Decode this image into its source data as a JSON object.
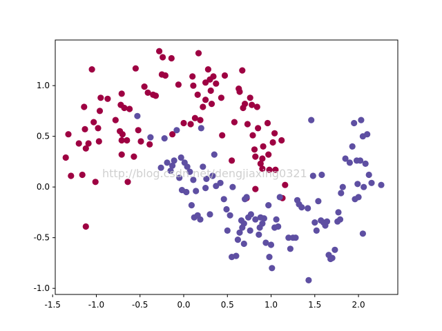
{
  "watermark": "http://blog.csdn.net/dengjiaxing0321",
  "chart_data": {
    "type": "scatter",
    "title": "",
    "xlabel": "",
    "ylabel": "",
    "xlim": [
      -1.47,
      2.45
    ],
    "ylim": [
      -1.06,
      1.45
    ],
    "xticks": [
      "-1.5",
      "-1.0",
      "-0.5",
      "0.0",
      "0.5",
      "1.0",
      "1.5",
      "2.0"
    ],
    "yticks": [
      "-1.0",
      "-0.5",
      "0.0",
      "0.5",
      "1.0"
    ],
    "xtick_values": [
      -1.5,
      -1.0,
      -0.5,
      0.0,
      0.5,
      1.0,
      1.5,
      2.0
    ],
    "ytick_values": [
      -1.0,
      -0.5,
      0.0,
      0.5,
      1.0
    ],
    "grid": false,
    "legend": "none",
    "series": [
      {
        "color": "#9e0142",
        "points": [
          [
            -1.35,
            0.29
          ],
          [
            -1.32,
            0.52
          ],
          [
            -1.29,
            0.11
          ],
          [
            -1.2,
            0.43
          ],
          [
            -1.16,
            0.12
          ],
          [
            -1.14,
            0.79
          ],
          [
            -1.13,
            0.57
          ],
          [
            -1.12,
            0.38
          ],
          [
            -1.12,
            -0.39
          ],
          [
            -1.09,
            0.43
          ],
          [
            -1.05,
            1.16
          ],
          [
            -1.03,
            0.64
          ],
          [
            -1.01,
            0.05
          ],
          [
            -0.98,
            0.58
          ],
          [
            -0.97,
            0.45
          ],
          [
            -0.96,
            0.75
          ],
          [
            -0.95,
            0.88
          ],
          [
            -0.87,
            0.87
          ],
          [
            -0.78,
            0.66
          ],
          [
            -0.73,
            0.55
          ],
          [
            -0.72,
            0.81
          ],
          [
            -0.71,
            0.46
          ],
          [
            -0.71,
            0.92
          ],
          [
            -0.71,
            0.32
          ],
          [
            -0.7,
            0.52
          ],
          [
            -0.68,
            0.78
          ],
          [
            -0.65,
            0.46
          ],
          [
            -0.64,
            0.05
          ],
          [
            -0.62,
            0.77
          ],
          [
            -0.57,
            0.3
          ],
          [
            -0.55,
            1.17
          ],
          [
            -0.52,
            0.56
          ],
          [
            -0.49,
            0.45
          ],
          [
            -0.45,
            0.99
          ],
          [
            -0.41,
            0.93
          ],
          [
            -0.39,
            0.42
          ],
          [
            -0.35,
            0.91
          ],
          [
            -0.32,
            0.9
          ],
          [
            -0.28,
            1.34
          ],
          [
            -0.25,
            1.11
          ],
          [
            -0.24,
            1.28
          ],
          [
            -0.21,
            1.1
          ],
          [
            -0.14,
            1.27
          ],
          [
            -0.13,
            0.52
          ],
          [
            -0.06,
            1.01
          ],
          [
            0.0,
            0.63
          ],
          [
            0.08,
            0.62
          ],
          [
            0.1,
            1.09
          ],
          [
            0.11,
            1.0
          ],
          [
            0.13,
            0.68
          ],
          [
            0.16,
            0.91
          ],
          [
            0.17,
            1.32
          ],
          [
            0.19,
            0.66
          ],
          [
            0.22,
            0.79
          ],
          [
            0.25,
            1.03
          ],
          [
            0.25,
            0.86
          ],
          [
            0.28,
            1.16
          ],
          [
            0.3,
            1.06
          ],
          [
            0.31,
            0.95
          ],
          [
            0.32,
            0.82
          ],
          [
            0.34,
            1.09
          ],
          [
            0.37,
            1.02
          ],
          [
            0.43,
            0.88
          ],
          [
            0.44,
            0.51
          ],
          [
            0.47,
            1.1
          ],
          [
            0.55,
            0.26
          ],
          [
            0.58,
            0.64
          ],
          [
            0.63,
            0.97
          ],
          [
            0.64,
            0.94
          ],
          [
            0.67,
            1.15
          ],
          [
            0.68,
            0.78
          ],
          [
            0.7,
            0.82
          ],
          [
            0.72,
            -0.11
          ],
          [
            0.73,
            0.62
          ],
          [
            0.76,
            0.88
          ],
          [
            0.78,
            0.81
          ],
          [
            0.79,
            0.51
          ],
          [
            0.81,
            0.37
          ],
          [
            0.82,
            -0.02
          ],
          [
            0.82,
            0.3
          ],
          [
            0.84,
            0.79
          ],
          [
            0.85,
            0.58
          ],
          [
            0.88,
            0.23
          ],
          [
            0.9,
            0.28
          ],
          [
            0.9,
            0.18
          ],
          [
            0.91,
            0.4
          ],
          [
            0.96,
            0.63
          ],
          [
            0.97,
            0.32
          ],
          [
            0.98,
            0.17
          ],
          [
            1.02,
            0.44
          ],
          [
            1.04,
            0.53
          ],
          [
            1.05,
            0.17
          ],
          [
            1.12,
            0.46
          ],
          [
            1.13,
            -0.11
          ],
          [
            1.16,
            0.02
          ]
        ]
      },
      {
        "color": "#5e4fa2",
        "points": [
          [
            -0.53,
            0.7
          ],
          [
            -0.38,
            0.49
          ],
          [
            -0.26,
            0.19
          ],
          [
            -0.22,
            0.48
          ],
          [
            -0.19,
            0.24
          ],
          [
            -0.15,
            0.16
          ],
          [
            -0.13,
            0.21
          ],
          [
            -0.11,
            0.26
          ],
          [
            -0.08,
            0.56
          ],
          [
            -0.05,
            0.09
          ],
          [
            -0.03,
            0.29
          ],
          [
            -0.02,
            -0.03
          ],
          [
            0.01,
            0.24
          ],
          [
            0.03,
            -0.05
          ],
          [
            0.04,
            0.2
          ],
          [
            0.07,
            0.15
          ],
          [
            0.09,
            -0.18
          ],
          [
            0.11,
            0.07
          ],
          [
            0.12,
            -0.3
          ],
          [
            0.14,
            -0.04
          ],
          [
            0.16,
            -0.28
          ],
          [
            0.19,
            -0.32
          ],
          [
            0.2,
            0.58
          ],
          [
            0.22,
            0.2
          ],
          [
            0.25,
            -0.01
          ],
          [
            0.26,
            0.08
          ],
          [
            0.3,
            -0.27
          ],
          [
            0.33,
            0.11
          ],
          [
            0.35,
            0.32
          ],
          [
            0.37,
            0.01
          ],
          [
            0.42,
            0.04
          ],
          [
            0.46,
            -0.12
          ],
          [
            0.49,
            -0.22
          ],
          [
            0.5,
            -0.43
          ],
          [
            0.53,
            -0.28
          ],
          [
            0.55,
            -0.69
          ],
          [
            0.56,
            0.0
          ],
          [
            0.6,
            -0.68
          ],
          [
            0.62,
            -0.52
          ],
          [
            0.64,
            -0.45
          ],
          [
            0.66,
            -0.33
          ],
          [
            0.67,
            -0.4
          ],
          [
            0.69,
            -0.56
          ],
          [
            0.69,
            -0.36
          ],
          [
            0.7,
            -0.12
          ],
          [
            0.72,
            -0.1
          ],
          [
            0.74,
            -0.3
          ],
          [
            0.77,
            -0.27
          ],
          [
            0.82,
            -0.32
          ],
          [
            0.86,
            -0.47
          ],
          [
            0.87,
            -0.4
          ],
          [
            0.88,
            -0.3
          ],
          [
            0.9,
            -0.36
          ],
          [
            0.92,
            -0.31
          ],
          [
            0.94,
            -0.55
          ],
          [
            0.97,
            -0.18
          ],
          [
            0.98,
            -0.69
          ],
          [
            1.0,
            -0.57
          ],
          [
            1.01,
            -0.8
          ],
          [
            1.04,
            -0.4
          ],
          [
            1.06,
            -0.32
          ],
          [
            1.08,
            -0.39
          ],
          [
            1.1,
            -0.1
          ],
          [
            1.2,
            -0.5
          ],
          [
            1.22,
            -0.61
          ],
          [
            1.25,
            -0.5
          ],
          [
            1.28,
            -0.5
          ],
          [
            1.3,
            -0.13
          ],
          [
            1.35,
            -0.2
          ],
          [
            1.42,
            -0.21
          ],
          [
            1.43,
            -0.92
          ],
          [
            1.46,
            0.66
          ],
          [
            1.48,
            0.11
          ],
          [
            1.5,
            -0.35
          ],
          [
            1.52,
            -0.43
          ],
          [
            1.54,
            -0.14
          ],
          [
            1.57,
            -0.33
          ],
          [
            1.58,
            0.12
          ],
          [
            1.6,
            -0.35
          ],
          [
            1.62,
            -0.38
          ],
          [
            1.64,
            -0.34
          ],
          [
            1.66,
            -0.67
          ],
          [
            1.68,
            -0.71
          ],
          [
            1.7,
            -0.7
          ],
          [
            1.73,
            -0.62
          ],
          [
            1.76,
            -0.34
          ],
          [
            1.77,
            -0.25
          ],
          [
            1.79,
            -0.32
          ],
          [
            1.8,
            -0.06
          ],
          [
            1.82,
            0.0
          ],
          [
            1.85,
            0.28
          ],
          [
            1.9,
            0.24
          ],
          [
            1.93,
            0.4
          ],
          [
            1.95,
            0.63
          ],
          [
            1.96,
            -0.12
          ],
          [
            1.98,
            0.26
          ],
          [
            1.99,
            0.03
          ],
          [
            2.0,
            -0.1
          ],
          [
            2.02,
            0.26
          ],
          [
            2.03,
            0.66
          ],
          [
            2.05,
            0.5
          ],
          [
            2.06,
            0.0
          ],
          [
            2.08,
            0.23
          ],
          [
            2.1,
            0.52
          ],
          [
            2.12,
            0.12
          ],
          [
            2.15,
            0.04
          ],
          [
            2.26,
            0.02
          ],
          [
            2.05,
            -0.46
          ],
          [
            1.32,
            -0.17
          ],
          [
            0.76,
            -0.43
          ]
        ]
      }
    ]
  }
}
